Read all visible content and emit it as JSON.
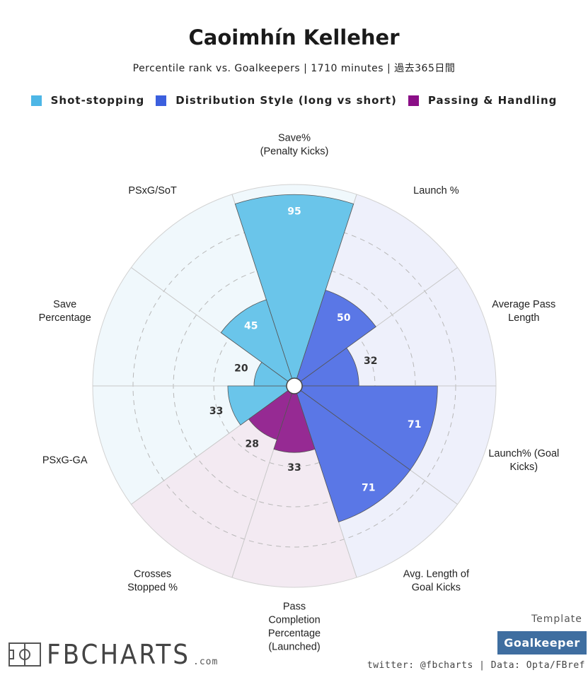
{
  "header": {
    "title": "Caoimhín Kelleher",
    "subtitle": "Percentile rank vs. Goalkeepers | 1710 minutes | 過去365日間"
  },
  "legend": [
    {
      "label": "Shot-stopping",
      "color": "#4db6e6"
    },
    {
      "label": "Distribution Style (long vs short)",
      "color": "#3b5fde"
    },
    {
      "label": "Passing & Handling",
      "color": "#8b0f87"
    }
  ],
  "chart_data": {
    "type": "pie",
    "subtype": "polar-area",
    "range": [
      0,
      100
    ],
    "gridlines": [
      20,
      40,
      60,
      80,
      100
    ],
    "categories": [
      {
        "name": "Shot-stopping",
        "color": "#6ac5ea",
        "bg": "#f0f8fc"
      },
      {
        "name": "Distribution Style (long vs short)",
        "color": "#5a77e6",
        "bg": "#eef0fb"
      },
      {
        "name": "Passing & Handling",
        "color": "#962a93",
        "bg": "#f3eaf2"
      }
    ],
    "metrics": [
      {
        "label_lines": [
          "Save%",
          "(Penalty Kicks)"
        ],
        "value": 95,
        "category": 0
      },
      {
        "label_lines": [
          "Launch %"
        ],
        "value": 50,
        "category": 1
      },
      {
        "label_lines": [
          "Average Pass",
          "Length"
        ],
        "value": 32,
        "category": 1
      },
      {
        "label_lines": [
          "Launch% (Goal",
          "Kicks)"
        ],
        "value": 71,
        "category": 1
      },
      {
        "label_lines": [
          "Avg. Length of",
          "Goal Kicks"
        ],
        "value": 71,
        "category": 1
      },
      {
        "label_lines": [
          "Pass",
          "Completion",
          "Percentage",
          "(Launched)"
        ],
        "value": 33,
        "category": 2
      },
      {
        "label_lines": [
          "Crosses",
          "Stopped %"
        ],
        "value": 28,
        "category": 2
      },
      {
        "label_lines": [
          "PSxG-GA"
        ],
        "value": 33,
        "category": 0
      },
      {
        "label_lines": [
          "Save",
          "Percentage"
        ],
        "value": 20,
        "category": 0
      },
      {
        "label_lines": [
          "PSxG/SoT"
        ],
        "value": 45,
        "category": 0
      }
    ]
  },
  "footer": {
    "template_label": "Template",
    "template_value": "Goalkeeper",
    "credit": "twitter: @fbcharts | Data: Opta/FBref",
    "logo_text": "FBCHARTS",
    "logo_suffix": ".com"
  }
}
